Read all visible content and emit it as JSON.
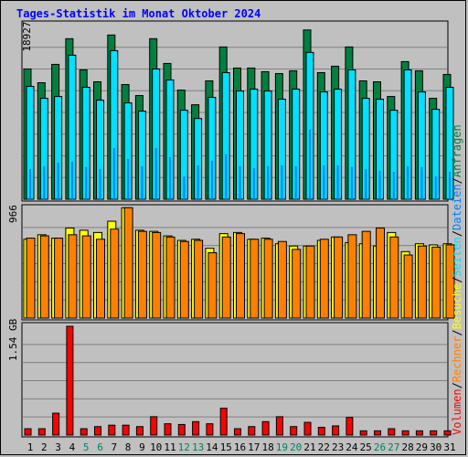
{
  "title": "Tages-Statistik im Monat Oktober 2024",
  "legend": {
    "volumen": "Volumen",
    "rechner": "Rechner",
    "besuche": "Besuche",
    "seiten": "Seiten",
    "dateien": "Dateien",
    "anfragen": "Anfragen",
    "sep": "/"
  },
  "colors": {
    "background": "#c0c0c0",
    "title": "#0000ff",
    "anfragen": "#008040",
    "dateien": "#0080ff",
    "seiten": "#00e0ff",
    "besuche": "#ffff00",
    "rechner": "#ff8000",
    "volumen": "#ff0000",
    "weekend_label": "#00805c",
    "weekday_label": "#000000"
  },
  "chart_data": [
    {
      "type": "bar",
      "panel": "top",
      "ylabel": "18927",
      "ymax": 18927,
      "categories": [
        "1",
        "2",
        "3",
        "4",
        "5",
        "6",
        "7",
        "8",
        "9",
        "10",
        "11",
        "12",
        "13",
        "14",
        "15",
        "16",
        "17",
        "18",
        "19",
        "20",
        "21",
        "22",
        "23",
        "24",
        "25",
        "26",
        "27",
        "28",
        "29",
        "30",
        "31"
      ],
      "weekend_days": [
        "5",
        "6",
        "12",
        "13",
        "19",
        "20",
        "26",
        "27"
      ],
      "series": [
        {
          "name": "Anfragen",
          "values": [
            14200,
            12700,
            14700,
            17500,
            14100,
            12800,
            17900,
            12500,
            11300,
            17500,
            14800,
            11900,
            10300,
            12900,
            16600,
            14300,
            14300,
            13900,
            13700,
            14000,
            18450,
            13800,
            14500,
            16600,
            12900,
            12800,
            11200,
            15000,
            14000,
            11000,
            13600
          ]
        },
        {
          "name": "Dateien",
          "values": [
            3300,
            3600,
            4000,
            4100,
            3500,
            3300,
            5600,
            4400,
            3600,
            5600,
            4600,
            2500,
            3700,
            4200,
            4900,
            3600,
            3400,
            3600,
            3700,
            3600,
            7600,
            3700,
            3700,
            3500,
            3300,
            3100,
            3000,
            3600,
            3500,
            2500,
            3000
          ]
        },
        {
          "name": "Seiten",
          "values": [
            12300,
            11000,
            11200,
            15700,
            12200,
            10800,
            16200,
            10500,
            9600,
            14200,
            13000,
            9700,
            8800,
            11100,
            13800,
            11800,
            12000,
            11800,
            10900,
            12000,
            16000,
            11700,
            12000,
            14100,
            11000,
            10900,
            9700,
            14100,
            11700,
            9800,
            12200
          ]
        }
      ]
    },
    {
      "type": "bar",
      "panel": "middle",
      "ylabel": "966",
      "ymax": 966,
      "categories": [
        "1",
        "2",
        "3",
        "4",
        "5",
        "6",
        "7",
        "8",
        "9",
        "10",
        "11",
        "12",
        "13",
        "14",
        "15",
        "16",
        "17",
        "18",
        "19",
        "20",
        "21",
        "22",
        "23",
        "24",
        "25",
        "26",
        "27",
        "28",
        "29",
        "30",
        "31"
      ],
      "series": [
        {
          "name": "Besuche",
          "values": [
            700,
            740,
            710,
            800,
            780,
            760,
            860,
            980,
            780,
            770,
            730,
            690,
            700,
            620,
            750,
            760,
            700,
            710,
            660,
            640,
            640,
            690,
            720,
            670,
            660,
            640,
            760,
            590,
            660,
            650,
            660
          ]
        },
        {
          "name": "Rechner",
          "values": [
            710,
            730,
            710,
            740,
            730,
            700,
            790,
            980,
            770,
            760,
            720,
            680,
            690,
            580,
            720,
            750,
            700,
            700,
            680,
            610,
            640,
            700,
            720,
            740,
            770,
            800,
            720,
            560,
            640,
            630,
            650
          ]
        }
      ]
    },
    {
      "type": "bar",
      "panel": "bottom",
      "ylabel": "1.54 GB",
      "ymax": 1.54,
      "unit": "GB",
      "categories": [
        "1",
        "2",
        "3",
        "4",
        "5",
        "6",
        "7",
        "8",
        "9",
        "10",
        "11",
        "12",
        "13",
        "14",
        "15",
        "16",
        "17",
        "18",
        "19",
        "20",
        "21",
        "22",
        "23",
        "24",
        "25",
        "26",
        "27",
        "28",
        "29",
        "30",
        "31"
      ],
      "series": [
        {
          "name": "Volumen",
          "values": [
            0.09,
            0.09,
            0.31,
            1.54,
            0.09,
            0.12,
            0.14,
            0.14,
            0.12,
            0.26,
            0.16,
            0.15,
            0.19,
            0.16,
            0.38,
            0.09,
            0.12,
            0.19,
            0.26,
            0.12,
            0.18,
            0.11,
            0.13,
            0.25,
            0.06,
            0.06,
            0.09,
            0.06,
            0.06,
            0.06,
            0.06
          ]
        }
      ]
    }
  ]
}
